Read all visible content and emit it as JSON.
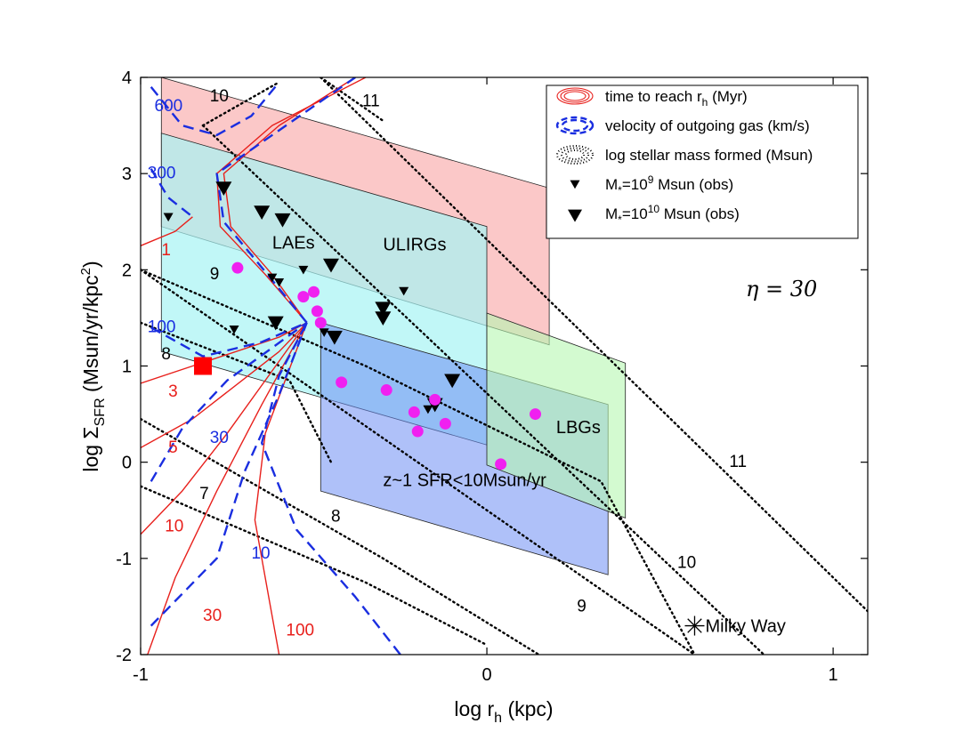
{
  "chart_data": {
    "type": "scatter",
    "xlabel": "log r",
    "xlabel_sub": "h",
    "xlabel_unit": " (kpc)",
    "ylabel": "log Σ",
    "ylabel_sub": "SFR",
    "ylabel_unit": " (Msun/yr/kpc",
    "ylabel_sup": "2",
    "ylabel_close": ")",
    "xlim": [
      -1,
      1.1
    ],
    "ylim": [
      -2,
      4
    ],
    "x_ticks": [
      -1,
      0,
      1
    ],
    "x_tick_labels": [
      "-1",
      "0",
      "1"
    ],
    "y_ticks": [
      -2,
      -1,
      0,
      1,
      2,
      3,
      4
    ],
    "y_tick_labels": [
      "-2",
      "-1",
      "0",
      "1",
      "2",
      "3",
      "4"
    ],
    "annotation_eta": "η = 30",
    "colors": {
      "time_contour": "#e8201c",
      "velocity_contour": "#1a2ee0",
      "mass_line": "#000000",
      "ulirg_fill": "#f9b5b5",
      "lae_fill": "#a6f4f4",
      "z1_fill": "#6d8ef4",
      "lbg_fill": "#b6f6b0",
      "lae_marker": "#f020f0",
      "milky_way_square": "#ff0000"
    },
    "regions": [
      {
        "label": "ULIRGs",
        "label_pos": [
          -0.3,
          2.2
        ],
        "polygon": [
          [
            -0.94,
            4.0
          ],
          [
            0.18,
            2.85
          ],
          [
            0.18,
            1.22
          ],
          [
            -0.94,
            2.45
          ]
        ]
      },
      {
        "label": "LAEs",
        "label_pos": [
          -0.62,
          2.22
        ],
        "polygon": [
          [
            -0.94,
            3.42
          ],
          [
            0.0,
            2.45
          ],
          [
            0.0,
            0.18
          ],
          [
            -0.94,
            1.15
          ]
        ]
      },
      {
        "label": "z~1 SFR<10Msun/yr",
        "label_pos": [
          -0.3,
          -0.25
        ],
        "polygon": [
          [
            -0.48,
            1.45
          ],
          [
            0.35,
            0.6
          ],
          [
            0.35,
            -1.17
          ],
          [
            -0.48,
            -0.3
          ]
        ]
      },
      {
        "label": "LBGs",
        "label_pos": [
          0.2,
          0.3
        ],
        "polygon": [
          [
            0.0,
            1.55
          ],
          [
            0.4,
            1.03
          ],
          [
            0.4,
            -0.58
          ],
          [
            0.0,
            -0.03
          ]
        ]
      }
    ],
    "legend": [
      {
        "key": "time",
        "text": "time to reach r",
        "sub": "h",
        "tail": " (Myr)"
      },
      {
        "key": "velocity",
        "text": "velocity of outgoing gas (km/s)",
        "sub": "",
        "tail": ""
      },
      {
        "key": "mass",
        "text": "log stellar mass formed (Msun)",
        "sub": "",
        "tail": ""
      },
      {
        "key": "obs9",
        "text": "M",
        "sub": "*",
        "tail": "=10",
        "sup": "9",
        "tail2": " Msun (obs)"
      },
      {
        "key": "obs10",
        "text": "M",
        "sub": "*",
        "tail": "=10",
        "sup": "10",
        "tail2": " Msun (obs)"
      }
    ],
    "mass_lines": [
      {
        "label": "7",
        "label_pos": [
          -0.83,
          -0.38
        ],
        "points": [
          [
            -1.0,
            -0.25
          ],
          [
            -0.35,
            -1.25
          ],
          [
            0.0,
            -1.9
          ]
        ]
      },
      {
        "label": "8",
        "label_pos": [
          -0.45,
          -0.62
        ],
        "points": [
          [
            -1.0,
            0.45
          ],
          [
            -0.3,
            -1.0
          ],
          [
            0.15,
            -2.0
          ]
        ]
      },
      {
        "label": "8",
        "label_pos": [
          -0.94,
          1.07
        ],
        "points": [
          [
            -1.0,
            1.45
          ],
          [
            -0.57,
            0.85
          ],
          [
            -0.45,
            0.0
          ]
        ]
      },
      {
        "label": "9",
        "label_pos": [
          -0.8,
          1.9
        ],
        "points": [
          [
            -1.0,
            2.0
          ],
          [
            -0.35,
            1.0
          ],
          [
            0.33,
            -0.2
          ],
          [
            0.6,
            -2.0
          ]
        ]
      },
      {
        "label": "9",
        "label_pos": [
          0.26,
          -1.55
        ],
        "points": [
          [
            -1.0,
            2.0
          ],
          [
            0.6,
            -2.0
          ]
        ]
      },
      {
        "label": "10",
        "label_pos": [
          0.55,
          -1.1
        ],
        "points": [
          [
            -0.82,
            3.5
          ],
          [
            0.8,
            -2.0
          ]
        ]
      },
      {
        "label": "10",
        "label_pos": [
          -0.8,
          3.75
        ],
        "points": [
          [
            -0.82,
            3.5
          ],
          [
            -0.6,
            3.95
          ]
        ]
      },
      {
        "label": "11",
        "label_pos": [
          0.7,
          -0.05
        ],
        "points": [
          [
            -0.48,
            4.0
          ],
          [
            1.1,
            -1.55
          ]
        ]
      },
      {
        "label": "11",
        "label_pos": [
          -0.36,
          3.7
        ],
        "points": [
          [
            -0.48,
            4.0
          ],
          [
            -0.3,
            3.55
          ]
        ]
      }
    ],
    "time_contours": [
      {
        "label": "1",
        "label_pos": [
          -0.94,
          2.15
        ],
        "points": [
          [
            -1.0,
            2.25
          ],
          [
            -0.9,
            2.4
          ],
          [
            -0.85,
            2.55
          ]
        ]
      },
      {
        "label": "3",
        "label_pos": [
          -0.92,
          0.68
        ],
        "points": [
          [
            -1.0,
            0.82
          ],
          [
            -0.85,
            1.0
          ],
          [
            -0.6,
            1.3
          ],
          [
            -0.52,
            1.45
          ]
        ]
      },
      {
        "label": "5",
        "label_pos": [
          -0.92,
          0.1
        ],
        "points": [
          [
            -1.0,
            0.15
          ],
          [
            -0.85,
            0.45
          ],
          [
            -0.6,
            1.15
          ],
          [
            -0.52,
            1.45
          ]
        ]
      },
      {
        "label": "10",
        "label_pos": [
          -0.93,
          -0.72
        ],
        "points": [
          [
            -1.0,
            -0.75
          ],
          [
            -0.88,
            -0.3
          ],
          [
            -0.75,
            0.3
          ],
          [
            -0.6,
            1.05
          ],
          [
            -0.52,
            1.45
          ]
        ]
      },
      {
        "label": "30",
        "label_pos": [
          -0.82,
          -1.65
        ],
        "points": [
          [
            -0.98,
            -2.0
          ],
          [
            -0.9,
            -1.2
          ],
          [
            -0.78,
            -0.3
          ],
          [
            -0.65,
            0.6
          ],
          [
            -0.52,
            1.45
          ]
        ]
      },
      {
        "label": "100",
        "label_pos": [
          -0.58,
          -1.8
        ],
        "points": [
          [
            -0.6,
            -2.0
          ],
          [
            -0.63,
            -1.4
          ],
          [
            -0.67,
            -0.6
          ],
          [
            -0.64,
            0.3
          ],
          [
            -0.52,
            1.45
          ]
        ]
      },
      {
        "label": "",
        "label_pos": [
          0,
          0
        ],
        "points": [
          [
            -0.52,
            1.45
          ],
          [
            -0.64,
            1.95
          ],
          [
            -0.77,
            2.45
          ],
          [
            -0.78,
            3.0
          ],
          [
            -0.62,
            3.5
          ],
          [
            -0.35,
            4.0
          ]
        ]
      },
      {
        "label": "",
        "label_pos": [
          0,
          0
        ],
        "points": [
          [
            -0.52,
            1.45
          ],
          [
            -0.62,
            1.95
          ],
          [
            -0.74,
            2.45
          ],
          [
            -0.76,
            3.0
          ],
          [
            -0.6,
            3.5
          ],
          [
            -0.38,
            4.0
          ]
        ]
      }
    ],
    "velocity_contours": [
      {
        "label": "600",
        "label_pos": [
          -0.96,
          3.65
        ],
        "points": [
          [
            -0.97,
            3.9
          ],
          [
            -0.88,
            3.5
          ],
          [
            -0.78,
            3.4
          ],
          [
            -0.68,
            3.6
          ],
          [
            -0.6,
            3.95
          ]
        ]
      },
      {
        "label": "300",
        "label_pos": [
          -0.98,
          2.95
        ],
        "points": [
          [
            -0.97,
            3.05
          ],
          [
            -0.92,
            2.75
          ],
          [
            -0.85,
            2.55
          ]
        ]
      },
      {
        "label": "100",
        "label_pos": [
          -0.98,
          1.35
        ],
        "points": [
          [
            -0.97,
            1.4
          ],
          [
            -0.82,
            1.1
          ],
          [
            -0.65,
            1.25
          ],
          [
            -0.52,
            1.45
          ]
        ]
      },
      {
        "label": "30",
        "label_pos": [
          -0.8,
          0.2
        ],
        "points": [
          [
            -0.97,
            -0.2
          ],
          [
            -0.88,
            0.35
          ],
          [
            -0.75,
            0.85
          ],
          [
            -0.52,
            1.45
          ]
        ]
      },
      {
        "label": "10",
        "label_pos": [
          -0.68,
          -1.0
        ],
        "points": [
          [
            -0.97,
            -1.7
          ],
          [
            -0.78,
            -1.0
          ],
          [
            -0.7,
            -0.1
          ],
          [
            -0.6,
            0.7
          ],
          [
            -0.52,
            1.45
          ]
        ]
      },
      {
        "label": "",
        "label_pos": [
          0,
          0
        ],
        "points": [
          [
            -0.25,
            -2.0
          ],
          [
            -0.38,
            -1.4
          ],
          [
            -0.55,
            -0.7
          ],
          [
            -0.65,
            0.2
          ],
          [
            -0.6,
            0.9
          ],
          [
            -0.52,
            1.45
          ]
        ]
      },
      {
        "label": "",
        "label_pos": [
          0,
          0
        ],
        "points": [
          [
            -0.52,
            1.45
          ],
          [
            -0.64,
            1.98
          ],
          [
            -0.76,
            2.5
          ],
          [
            -0.78,
            3.0
          ],
          [
            -0.58,
            3.5
          ],
          [
            -0.38,
            4.0
          ]
        ]
      }
    ],
    "obs_small_triangles": [
      [
        -0.92,
        2.55
      ],
      [
        -0.73,
        1.38
      ],
      [
        -0.62,
        1.92
      ],
      [
        -0.6,
        1.87
      ],
      [
        -0.53,
        2.0
      ],
      [
        -0.24,
        1.78
      ],
      [
        -0.17,
        0.55
      ],
      [
        -0.47,
        1.35
      ]
    ],
    "obs_large_triangles": [
      [
        -0.76,
        2.85
      ],
      [
        -0.65,
        2.6
      ],
      [
        -0.59,
        2.52
      ],
      [
        -0.45,
        2.05
      ],
      [
        -0.61,
        1.45
      ],
      [
        -0.44,
        1.3
      ],
      [
        -0.3,
        1.6
      ],
      [
        -0.3,
        1.5
      ],
      [
        -0.1,
        0.85
      ],
      [
        -0.15,
        0.6
      ]
    ],
    "lae_points": [
      [
        -0.72,
        2.02
      ],
      [
        -0.53,
        1.72
      ],
      [
        -0.5,
        1.77
      ],
      [
        -0.49,
        1.57
      ],
      [
        -0.48,
        1.45
      ],
      [
        -0.42,
        0.83
      ],
      [
        -0.29,
        0.75
      ],
      [
        -0.21,
        0.52
      ],
      [
        -0.2,
        0.32
      ],
      [
        -0.15,
        0.65
      ],
      [
        -0.12,
        0.4
      ],
      [
        0.04,
        -0.02
      ],
      [
        0.14,
        0.5
      ]
    ],
    "lae_small_points": [
      [
        -0.2,
        0.32
      ]
    ],
    "milky_way_square": [
      -0.82,
      1.0
    ],
    "milky_way_star": [
      0.6,
      -1.7
    ],
    "milky_way_label": "Milky Way"
  }
}
